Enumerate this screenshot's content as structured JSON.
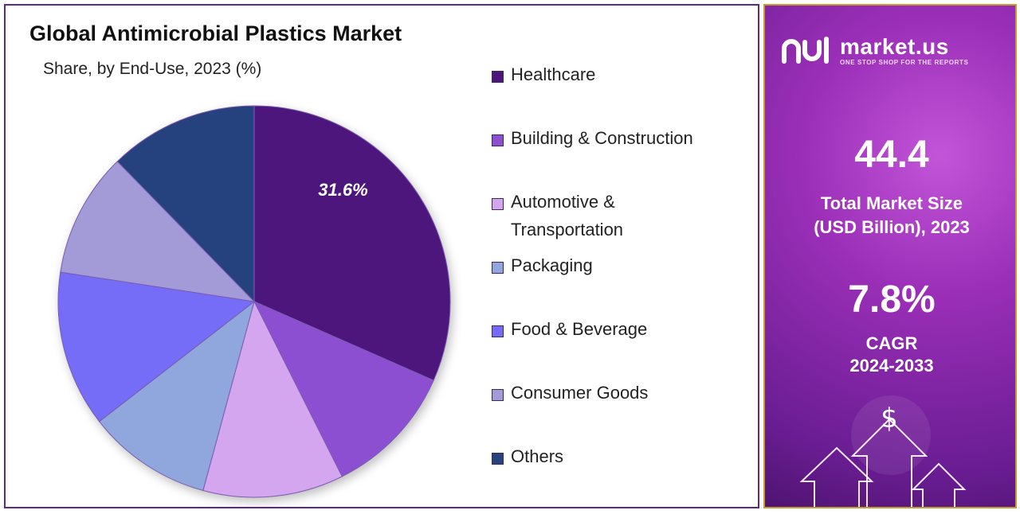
{
  "chart_data": {
    "type": "pie",
    "title": "Global Antimicrobial Plastics Market",
    "subtitle": "Share, by End-Use, 2023 (%)",
    "legend_position": "right",
    "slices": [
      {
        "name": "Healthcare",
        "value": 31.6,
        "color": "#4e157d",
        "label": "31.6%"
      },
      {
        "name": "Building & Construction",
        "value": 11.0,
        "color": "#8c4fd1"
      },
      {
        "name": "Automotive & Transportation",
        "value": 11.6,
        "color": "#d3a6ef"
      },
      {
        "name": "Packaging",
        "value": 10.3,
        "color": "#8fa7dc"
      },
      {
        "name": "Food & Beverage",
        "value": 12.9,
        "color": "#746cf7"
      },
      {
        "name": "Consumer Goods",
        "value": 10.3,
        "color": "#a39ad8"
      },
      {
        "name": "Others",
        "value": 12.3,
        "color": "#27437e"
      }
    ]
  },
  "panel": {
    "brand_name": "market.us",
    "brand_tagline": "ONE STOP SHOP FOR THE REPORTS",
    "market_size_value": "44.4",
    "market_size_label_1": "Total Market Size",
    "market_size_label_2": "(USD Billion), 2023",
    "cagr_value": "7.8%",
    "cagr_label_1": "CAGR",
    "cagr_label_2": "2024-2033",
    "currency_symbol": "$"
  }
}
